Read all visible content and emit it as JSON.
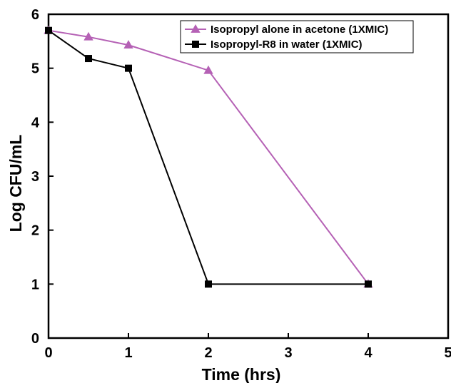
{
  "chart_data": {
    "type": "line",
    "title": "",
    "xlabel": "Time (hrs)",
    "ylabel": "Log CFU/mL",
    "xlim": [
      0,
      5
    ],
    "ylim": [
      0,
      6
    ],
    "xticks": [
      0,
      1,
      2,
      3,
      4,
      5
    ],
    "yticks": [
      0,
      1,
      2,
      3,
      4,
      5,
      6
    ],
    "grid": false,
    "legend_position": "top-right",
    "series": [
      {
        "name": "Isopropyl alone in acetone (1XMIC)",
        "color": "#b561b5",
        "marker": "triangle",
        "x": [
          0,
          0.5,
          1,
          2,
          4
        ],
        "y": [
          5.7,
          5.58,
          5.43,
          4.96,
          1.0
        ]
      },
      {
        "name": "Isopropyl-R8 in water (1XMIC)",
        "color": "#000000",
        "marker": "square",
        "x": [
          0,
          0.5,
          1,
          2,
          4
        ],
        "y": [
          5.7,
          5.18,
          5.0,
          1.0,
          1.0
        ]
      }
    ]
  }
}
